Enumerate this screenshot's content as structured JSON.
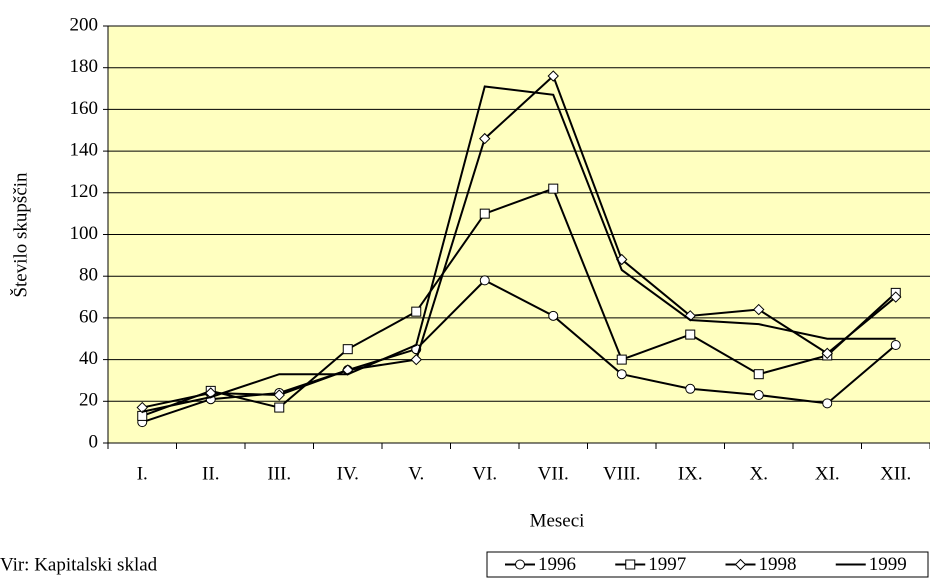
{
  "chart_data": {
    "type": "line",
    "y_label": "Število skupščin",
    "x_label": "Meseci",
    "source": "Vir: Kapitalski sklad",
    "categories": [
      "I.",
      "II.",
      "III.",
      "IV.",
      "V.",
      "VI.",
      "VII.",
      "VIII.",
      "IX.",
      "X.",
      "XI.",
      "XII."
    ],
    "series": [
      {
        "name": "1996",
        "color": "#000000",
        "marker": "circle",
        "values": [
          10,
          21,
          24,
          35,
          45,
          78,
          61,
          33,
          26,
          23,
          19,
          47
        ]
      },
      {
        "name": "1997",
        "color": "#000000",
        "marker": "square",
        "values": [
          13,
          25,
          17,
          45,
          63,
          110,
          122,
          40,
          52,
          33,
          42,
          72
        ]
      },
      {
        "name": "1998",
        "color": "#000000",
        "marker": "diamond",
        "values": [
          17,
          24,
          23,
          35,
          40,
          146,
          176,
          88,
          61,
          64,
          43,
          70
        ]
      },
      {
        "name": "1999",
        "color": "#000000",
        "marker": "none",
        "values": [
          15,
          22,
          33,
          33,
          47,
          171,
          167,
          83,
          59,
          57,
          50,
          50
        ]
      }
    ],
    "ylim": [
      0,
      200
    ],
    "yticks": [
      0,
      20,
      40,
      60,
      80,
      100,
      120,
      140,
      160,
      180,
      200
    ],
    "grid": true,
    "plot_background": "#ffffc0",
    "legend": "bottom-right"
  }
}
